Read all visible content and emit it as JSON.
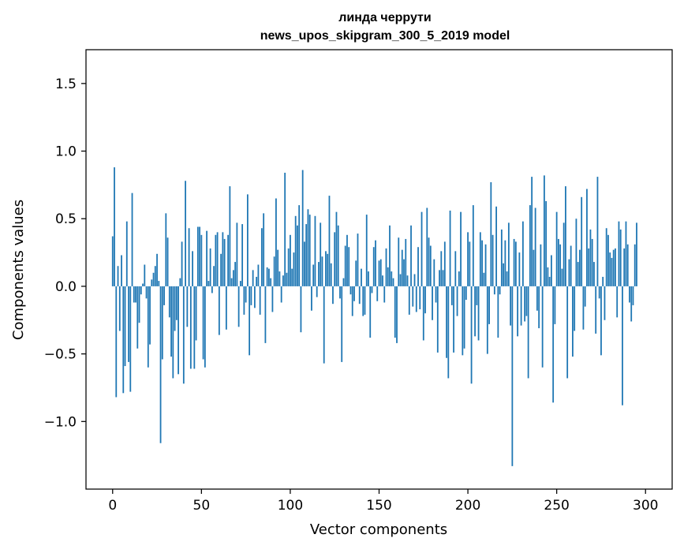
{
  "colors": {
    "bar": "#1f77b4",
    "axes": "#000000",
    "background": "#ffffff"
  },
  "chart_data": {
    "type": "bar",
    "title": "линда черрути",
    "subtitle": "news_upos_skipgram_300_5_2019 model",
    "xlabel": "Vector components",
    "ylabel": "Components values",
    "xlim": [
      -15,
      315
    ],
    "ylim": [
      -1.5,
      1.75
    ],
    "grid": false,
    "legend": "none",
    "xticks": [
      0,
      50,
      100,
      150,
      200,
      250,
      300
    ],
    "xtick_labels": [
      "0",
      "50",
      "100",
      "150",
      "200",
      "250",
      "300"
    ],
    "yticks": [
      -1.0,
      -0.5,
      0.0,
      0.5,
      1.0,
      1.5
    ],
    "ytick_labels": [
      "−1.0",
      "−0.5",
      "0.0",
      "0.5",
      "1.0",
      "1.5"
    ],
    "x_start": 0,
    "values": [
      0.37,
      0.88,
      -0.82,
      0.15,
      -0.33,
      0.23,
      -0.79,
      -0.59,
      0.48,
      -0.56,
      -0.78,
      0.69,
      -0.12,
      -0.12,
      -0.46,
      -0.27,
      -0.06,
      0.02,
      0.16,
      -0.09,
      -0.6,
      -0.43,
      0.05,
      0.1,
      0.15,
      0.24,
      0.04,
      -1.16,
      -0.54,
      -0.14,
      0.54,
      0.36,
      -0.23,
      -0.52,
      -0.68,
      -0.33,
      -0.25,
      -0.65,
      0.06,
      0.33,
      -0.72,
      0.78,
      -0.3,
      0.43,
      -0.61,
      0.26,
      -0.61,
      -0.4,
      0.44,
      0.44,
      0.38,
      -0.54,
      -0.6,
      0.41,
      0.04,
      0.28,
      -0.05,
      0.15,
      0.38,
      0.4,
      -0.36,
      0.24,
      0.4,
      0.35,
      -0.32,
      0.38,
      0.74,
      0.06,
      0.12,
      0.18,
      0.47,
      -0.3,
      0.04,
      0.46,
      -0.21,
      -0.12,
      0.68,
      -0.51,
      -0.14,
      0.12,
      -0.16,
      0.07,
      0.16,
      -0.21,
      0.43,
      0.54,
      -0.42,
      0.14,
      0.13,
      0.06,
      -0.19,
      0.22,
      0.65,
      0.27,
      0.11,
      -0.12,
      0.08,
      0.84,
      0.1,
      0.28,
      0.38,
      0.13,
      0.25,
      0.52,
      0.45,
      0.6,
      -0.34,
      0.86,
      0.33,
      0.46,
      0.57,
      0.53,
      -0.18,
      0.16,
      0.52,
      -0.08,
      0.18,
      0.47,
      0.22,
      -0.57,
      0.26,
      0.24,
      0.67,
      0.17,
      -0.13,
      0.4,
      0.55,
      0.45,
      -0.09,
      -0.56,
      0.06,
      0.3,
      0.38,
      0.29,
      -0.06,
      -0.22,
      -0.11,
      0.19,
      0.39,
      -0.13,
      0.13,
      -0.22,
      -0.21,
      0.53,
      0.11,
      -0.38,
      -0.05,
      0.29,
      0.34,
      -0.11,
      0.19,
      0.2,
      0.08,
      -0.12,
      0.28,
      0.14,
      0.45,
      0.11,
      0.06,
      -0.38,
      -0.42,
      0.36,
      0.09,
      0.27,
      0.2,
      0.35,
      0.08,
      -0.21,
      0.45,
      -0.15,
      0.09,
      -0.19,
      0.29,
      -0.17,
      0.55,
      -0.4,
      -0.2,
      0.58,
      0.36,
      0.3,
      -0.25,
      0.2,
      -0.12,
      -0.49,
      0.12,
      0.26,
      0.12,
      0.33,
      -0.53,
      -0.68,
      0.56,
      -0.14,
      -0.49,
      0.26,
      -0.22,
      0.11,
      0.55,
      -0.51,
      -0.46,
      -0.1,
      0.4,
      0.33,
      -0.72,
      0.6,
      -0.37,
      -0.14,
      -0.4,
      0.4,
      0.34,
      0.1,
      0.31,
      -0.5,
      -0.28,
      0.77,
      0.38,
      -0.06,
      0.59,
      -0.38,
      -0.06,
      0.42,
      0.17,
      0.34,
      0.11,
      0.47,
      -0.29,
      -1.33,
      0.35,
      0.33,
      -0.37,
      0.25,
      -0.29,
      0.48,
      -0.26,
      -0.22,
      -0.68,
      0.6,
      0.81,
      0.27,
      0.58,
      -0.18,
      -0.31,
      0.31,
      -0.6,
      0.82,
      0.63,
      0.14,
      0.07,
      0.23,
      -0.86,
      -0.28,
      0.55,
      0.35,
      0.31,
      0.13,
      0.47,
      0.74,
      -0.68,
      0.2,
      0.3,
      -0.52,
      -0.33,
      0.5,
      0.18,
      0.27,
      0.66,
      -0.32,
      -0.15,
      0.72,
      0.28,
      0.42,
      0.35,
      0.18,
      -0.35,
      0.81,
      -0.09,
      -0.51,
      0.07,
      -0.25,
      0.43,
      0.38,
      0.25,
      0.21,
      0.27,
      0.28,
      -0.23,
      0.48,
      0.42,
      -0.88,
      0.28,
      0.48,
      0.31,
      -0.12,
      -0.26,
      -0.14,
      0.31,
      0.47
    ]
  }
}
